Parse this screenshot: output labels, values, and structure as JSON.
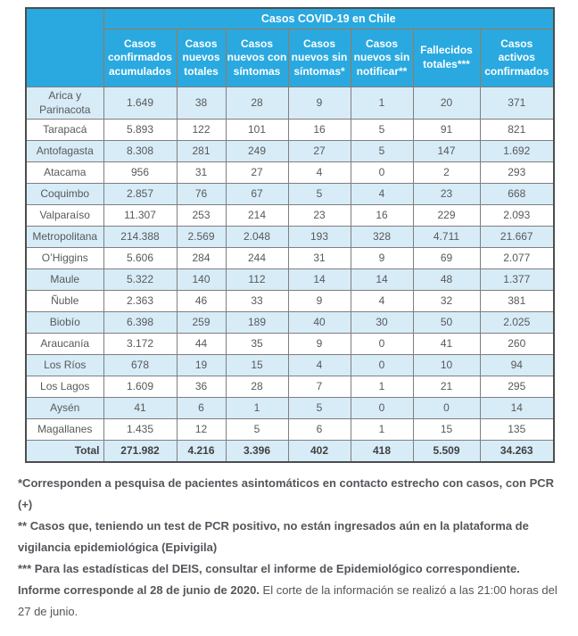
{
  "colors": {
    "header_blue": "#29a9e0",
    "row_stripe_blue": "#d7ecf7",
    "header_text": "#ffffff",
    "body_text": "#58595b",
    "header_border": "#a5764f",
    "body_border": "#7f7f7f",
    "outer_border": "#4d4d4d"
  },
  "chart_data": {
    "type": "table",
    "title": "Casos COVID-19 en Chile",
    "columns": [
      "Casos confirmados acumulados",
      "Casos nuevos totales",
      "Casos nuevos con síntomas",
      "Casos nuevos sin síntomas*",
      "Casos nuevos sin notificar**",
      "Fallecidos totales***",
      "Casos activos confirmados"
    ],
    "rows": [
      {
        "region": "Arica y Parinacota",
        "values": [
          "1.649",
          "38",
          "28",
          "9",
          "1",
          "20",
          "371"
        ]
      },
      {
        "region": "Tarapacá",
        "values": [
          "5.893",
          "122",
          "101",
          "16",
          "5",
          "91",
          "821"
        ]
      },
      {
        "region": "Antofagasta",
        "values": [
          "8.308",
          "281",
          "249",
          "27",
          "5",
          "147",
          "1.692"
        ]
      },
      {
        "region": "Atacama",
        "values": [
          "956",
          "31",
          "27",
          "4",
          "0",
          "2",
          "293"
        ]
      },
      {
        "region": "Coquimbo",
        "values": [
          "2.857",
          "76",
          "67",
          "5",
          "4",
          "23",
          "668"
        ]
      },
      {
        "region": "Valparaíso",
        "values": [
          "11.307",
          "253",
          "214",
          "23",
          "16",
          "229",
          "2.093"
        ]
      },
      {
        "region": "Metropolitana",
        "values": [
          "214.388",
          "2.569",
          "2.048",
          "193",
          "328",
          "4.711",
          "21.667"
        ]
      },
      {
        "region": "O’Higgins",
        "values": [
          "5.606",
          "284",
          "244",
          "31",
          "9",
          "69",
          "2.077"
        ]
      },
      {
        "region": "Maule",
        "values": [
          "5.322",
          "140",
          "112",
          "14",
          "14",
          "48",
          "1.377"
        ]
      },
      {
        "region": "Ñuble",
        "values": [
          "2.363",
          "46",
          "33",
          "9",
          "4",
          "32",
          "381"
        ]
      },
      {
        "region": "Biobío",
        "values": [
          "6.398",
          "259",
          "189",
          "40",
          "30",
          "50",
          "2.025"
        ]
      },
      {
        "region": "Araucanía",
        "values": [
          "3.172",
          "44",
          "35",
          "9",
          "0",
          "41",
          "260"
        ]
      },
      {
        "region": "Los Ríos",
        "values": [
          "678",
          "19",
          "15",
          "4",
          "0",
          "10",
          "94"
        ]
      },
      {
        "region": "Los Lagos",
        "values": [
          "1.609",
          "36",
          "28",
          "7",
          "1",
          "21",
          "295"
        ]
      },
      {
        "region": "Aysén",
        "values": [
          "41",
          "6",
          "1",
          "5",
          "0",
          "0",
          "14"
        ]
      },
      {
        "region": "Magallanes",
        "values": [
          "1.435",
          "12",
          "5",
          "6",
          "1",
          "15",
          "135"
        ]
      }
    ],
    "total": {
      "label": "Total",
      "values": [
        "271.982",
        "4.216",
        "3.396",
        "402",
        "418",
        "5.509",
        "34.263"
      ]
    }
  },
  "footnotes": [
    {
      "bold": "*Corresponden a pesquisa de pacientes asintomáticos en contacto estrecho con casos, con PCR (+)",
      "normal": ""
    },
    {
      "bold": "** Casos que, teniendo un test de PCR positivo, no están ingresados aún en la plataforma de vigilancia epidemiológica (Epivigila)",
      "normal": ""
    },
    {
      "bold": "*** Para las estadísticas del DEIS, consultar el informe de Epidemiológico correspondiente.",
      "normal": ""
    },
    {
      "bold": "Informe corresponde al 28 de junio de 2020.",
      "normal": " El corte de la información se realizó a las 21:00 horas del 27 de junio."
    }
  ]
}
